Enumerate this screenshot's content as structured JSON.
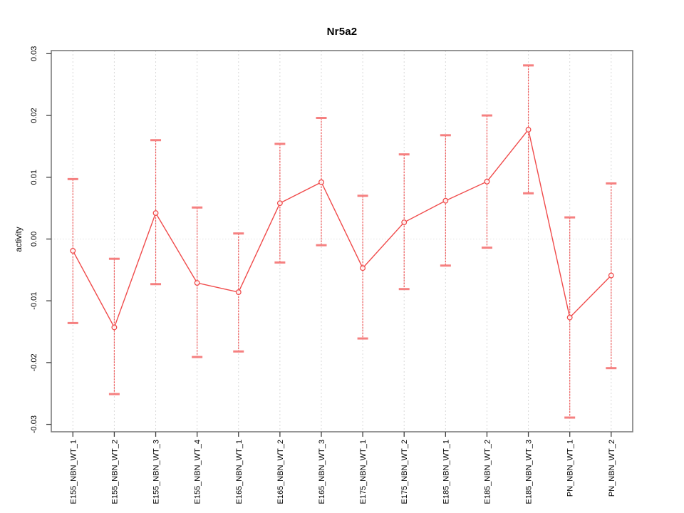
{
  "chart_data": {
    "type": "line",
    "title": "Nr5a2",
    "xlabel": "",
    "ylabel": "activity",
    "categories": [
      "E155_NBN_WT_1",
      "E155_NBN_WT_2",
      "E155_NBN_WT_3",
      "E155_NBN_WT_4",
      "E165_NBN_WT_1",
      "E165_NBN_WT_2",
      "E165_NBN_WT_3",
      "E175_NBN_WT_1",
      "E175_NBN_WT_2",
      "E185_NBN_WT_1",
      "E185_NBN_WT_2",
      "E185_NBN_WT_3",
      "PN_NBN_WT_1",
      "PN_NBN_WT_2"
    ],
    "series": [
      {
        "name": "activity",
        "values": [
          -0.0019,
          -0.0143,
          0.0042,
          -0.0071,
          -0.0086,
          0.0058,
          0.0092,
          -0.0047,
          0.0027,
          0.0062,
          0.0093,
          0.0177,
          -0.0127,
          -0.0059
        ],
        "error_lower": [
          -0.0136,
          -0.0251,
          -0.0073,
          -0.0191,
          -0.0182,
          -0.0038,
          -0.001,
          -0.0161,
          -0.0081,
          -0.0043,
          -0.0014,
          0.0074,
          -0.0289,
          -0.0209
        ],
        "error_upper": [
          0.0097,
          -0.0032,
          0.016,
          0.0051,
          0.0009,
          0.0154,
          0.0196,
          0.007,
          0.0137,
          0.0168,
          0.02,
          0.0281,
          0.0035,
          0.009
        ]
      }
    ],
    "ytick_values": [
      0.03,
      0.02,
      0.01,
      0.0,
      -0.01,
      -0.02,
      -0.03
    ],
    "ytick_labels": [
      "0.03",
      "0.02",
      "0.01",
      "0.00",
      "-0.01",
      "-0.02",
      "-0.03"
    ],
    "ylim": [
      -0.0312,
      0.0305
    ],
    "grid": {
      "vertical_gridlines": true,
      "zero_line": true,
      "legend": "none"
    },
    "marker": "open-circle",
    "colors": {
      "series_line": "#f04b4b",
      "marker_stroke": "#f04b4b",
      "error_bar_line": "#ef5a5a",
      "error_bar_cap": "#f58080",
      "gridline": "#d8d8d8",
      "zero_gridline": "#e2e2e2",
      "plot_border": "#7d7d7d",
      "tick_mark": "#3f3f3f",
      "text": "#000000",
      "background": "#ffffff"
    }
  }
}
